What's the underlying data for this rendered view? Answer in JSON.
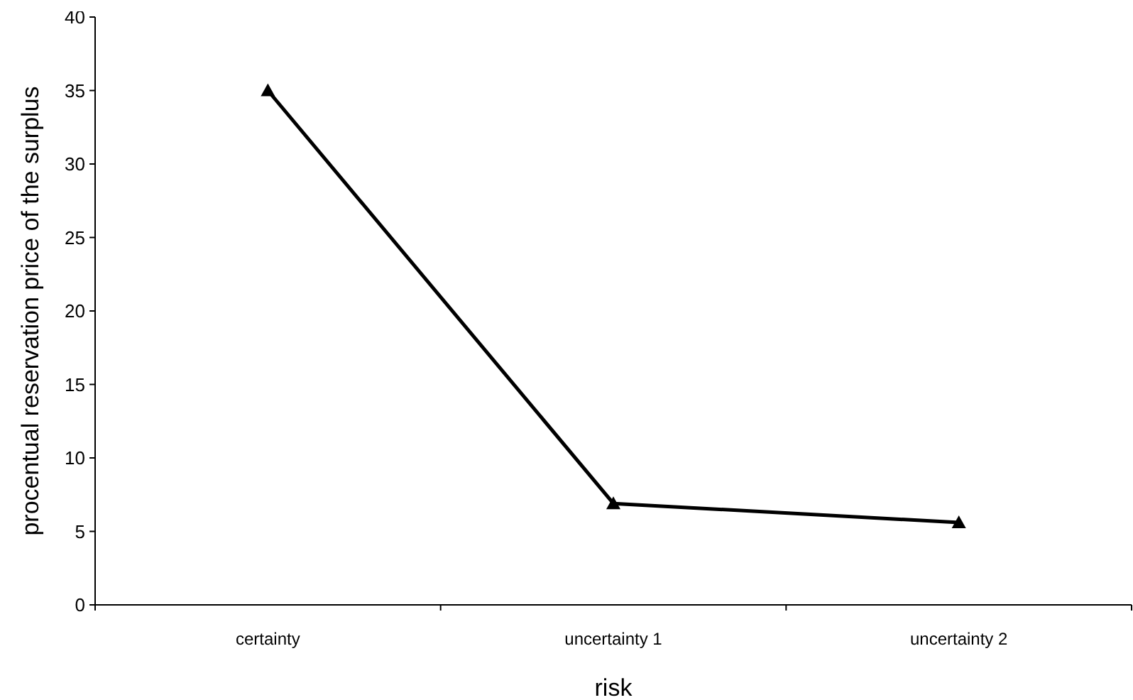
{
  "chart_data": {
    "type": "line",
    "xlabel": "risk",
    "ylabel": "procentual reservation price of the surplus",
    "categories": [
      "certainty",
      "uncertainty 1",
      "uncertainty 2"
    ],
    "series": [
      {
        "color": "#000000",
        "values": [
          35,
          6.9,
          5.6
        ]
      }
    ],
    "ylim": [
      0,
      40
    ],
    "yticks": [
      0,
      5,
      10,
      15,
      20,
      25,
      30,
      35,
      40
    ],
    "marker": "triangle",
    "line_style": "solid"
  }
}
